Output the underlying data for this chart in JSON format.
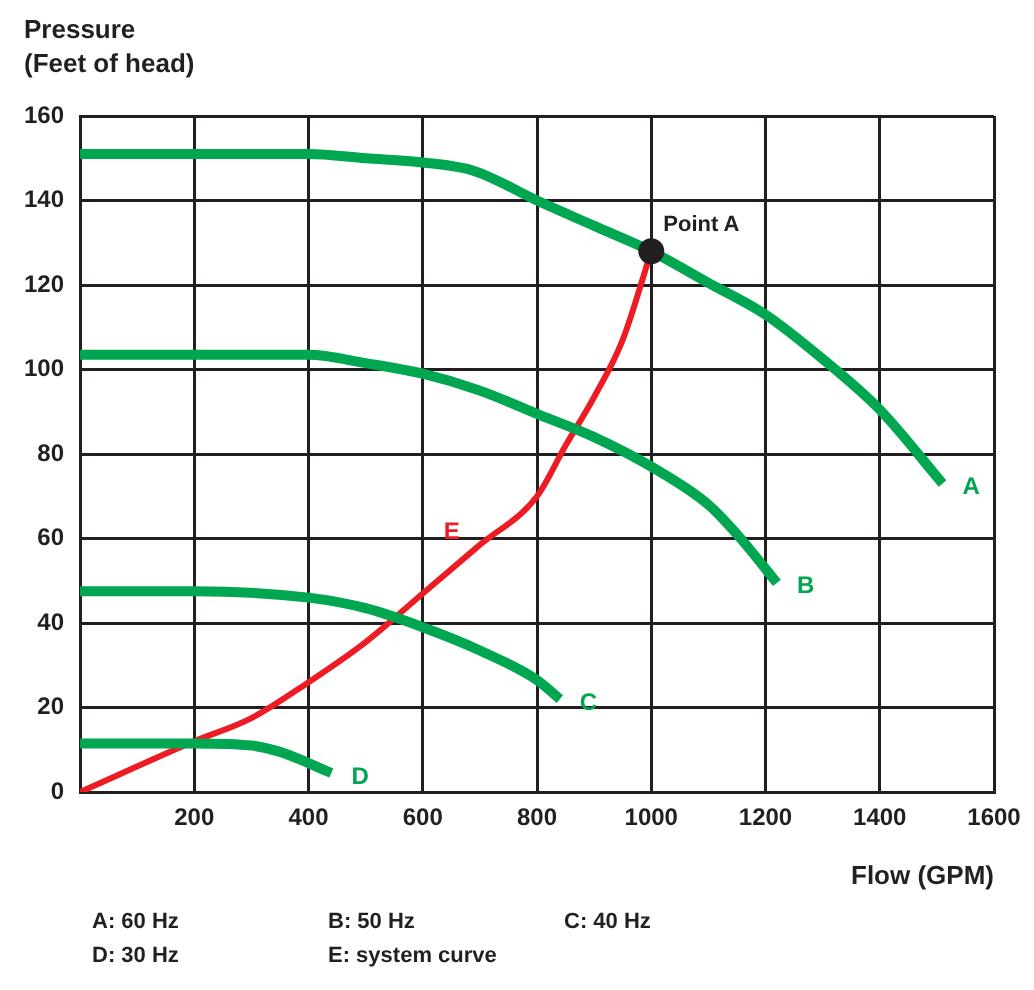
{
  "chart_data": {
    "type": "line",
    "ylabel": "Pressure\n(Feet of head)",
    "xlabel": "Flow (GPM)",
    "xlim": [
      0,
      1600
    ],
    "xticks": [
      {
        "value": 0,
        "label": null
      },
      200,
      400,
      600,
      800,
      1000,
      1200,
      1400,
      1600
    ],
    "ylim": [
      0,
      160
    ],
    "yticks": [
      0,
      20,
      40,
      60,
      80,
      100,
      120,
      140,
      160
    ],
    "grid": true,
    "legend": false,
    "marker": "none",
    "line_style": "solid",
    "series": [
      {
        "name": "A",
        "color": "#00a650",
        "x": [
          0,
          400,
          500,
          600,
          690,
          800,
          900,
          1000,
          1100,
          1200,
          1300,
          1400,
          1510
        ],
        "values": [
          151,
          151,
          150,
          149,
          147,
          140,
          134,
          128,
          120.5,
          113,
          102.5,
          90.5,
          73
        ]
      },
      {
        "name": "B",
        "color": "#00a650",
        "x": [
          0,
          400,
          500,
          600,
          700,
          800,
          900,
          1000,
          1100,
          1150,
          1220
        ],
        "values": [
          103.5,
          103.5,
          101.5,
          99,
          95,
          89.5,
          84,
          77,
          68,
          61,
          49.5
        ]
      },
      {
        "name": "C",
        "color": "#00a650",
        "x": [
          0,
          200,
          400,
          500,
          600,
          700,
          800,
          840
        ],
        "values": [
          47.5,
          47.5,
          46,
          43.5,
          39,
          33.5,
          26.5,
          22
        ]
      },
      {
        "name": "D",
        "color": "#00a650",
        "x": [
          0,
          200,
          300,
          350,
          440
        ],
        "values": [
          11.5,
          11.5,
          11,
          9.5,
          4.5
        ]
      },
      {
        "name": "E",
        "color": "#ed1c24",
        "x": [
          0,
          200,
          300,
          400,
          500,
          600,
          700,
          800,
          850,
          900,
          950,
          1000
        ],
        "values": [
          0,
          12,
          17.5,
          26,
          35.5,
          47,
          58.5,
          70,
          82,
          93.5,
          107,
          128
        ]
      },
      {
        "type": "scatter",
        "color": "#231f20",
        "marker": "circle",
        "x": [
          1000
        ],
        "values": [
          128
        ]
      }
    ],
    "annotations": [
      {
        "text": "Point A",
        "x": 1000,
        "y": 128
      },
      "A: 60 Hz",
      "B: 50 Hz",
      "C: 40 Hz",
      "D: 30 Hz",
      "E: system curve"
    ]
  }
}
